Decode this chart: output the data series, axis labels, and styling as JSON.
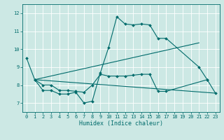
{
  "title": "",
  "xlabel": "Humidex (Indice chaleur)",
  "background_color": "#cce8e4",
  "grid_color": "#ffffff",
  "line_color": "#006b6b",
  "xlim": [
    -0.5,
    23.5
  ],
  "ylim": [
    6.5,
    12.5
  ],
  "yticks": [
    7,
    8,
    9,
    10,
    11,
    12
  ],
  "xticks": [
    0,
    1,
    2,
    3,
    4,
    5,
    6,
    7,
    8,
    9,
    10,
    11,
    12,
    13,
    14,
    15,
    16,
    17,
    18,
    19,
    20,
    21,
    22,
    23
  ],
  "series": [
    {
      "x": [
        0,
        1,
        2,
        3,
        4,
        5,
        6,
        7,
        8,
        9,
        10,
        11,
        12,
        13,
        14,
        15,
        16,
        17,
        21,
        22
      ],
      "y": [
        9.5,
        8.3,
        7.7,
        7.7,
        7.5,
        7.5,
        7.6,
        7.0,
        7.1,
        8.7,
        10.1,
        11.8,
        11.4,
        11.35,
        11.4,
        11.35,
        10.6,
        10.6,
        9.0,
        8.3
      ],
      "marker": true
    },
    {
      "x": [
        1,
        2,
        3,
        4,
        5,
        6,
        7,
        8,
        9,
        10,
        11,
        12,
        13,
        14,
        15,
        16,
        17,
        22,
        23
      ],
      "y": [
        8.3,
        8.0,
        8.0,
        7.7,
        7.7,
        7.65,
        7.6,
        8.0,
        8.6,
        8.5,
        8.5,
        8.5,
        8.55,
        8.6,
        8.6,
        7.65,
        7.65,
        8.3,
        7.55
      ],
      "marker": true
    },
    {
      "x": [
        1,
        23
      ],
      "y": [
        8.3,
        7.55
      ],
      "marker": false
    },
    {
      "x": [
        1,
        21
      ],
      "y": [
        8.3,
        10.35
      ],
      "marker": false
    }
  ],
  "figsize": [
    3.2,
    2.0
  ],
  "dpi": 100
}
